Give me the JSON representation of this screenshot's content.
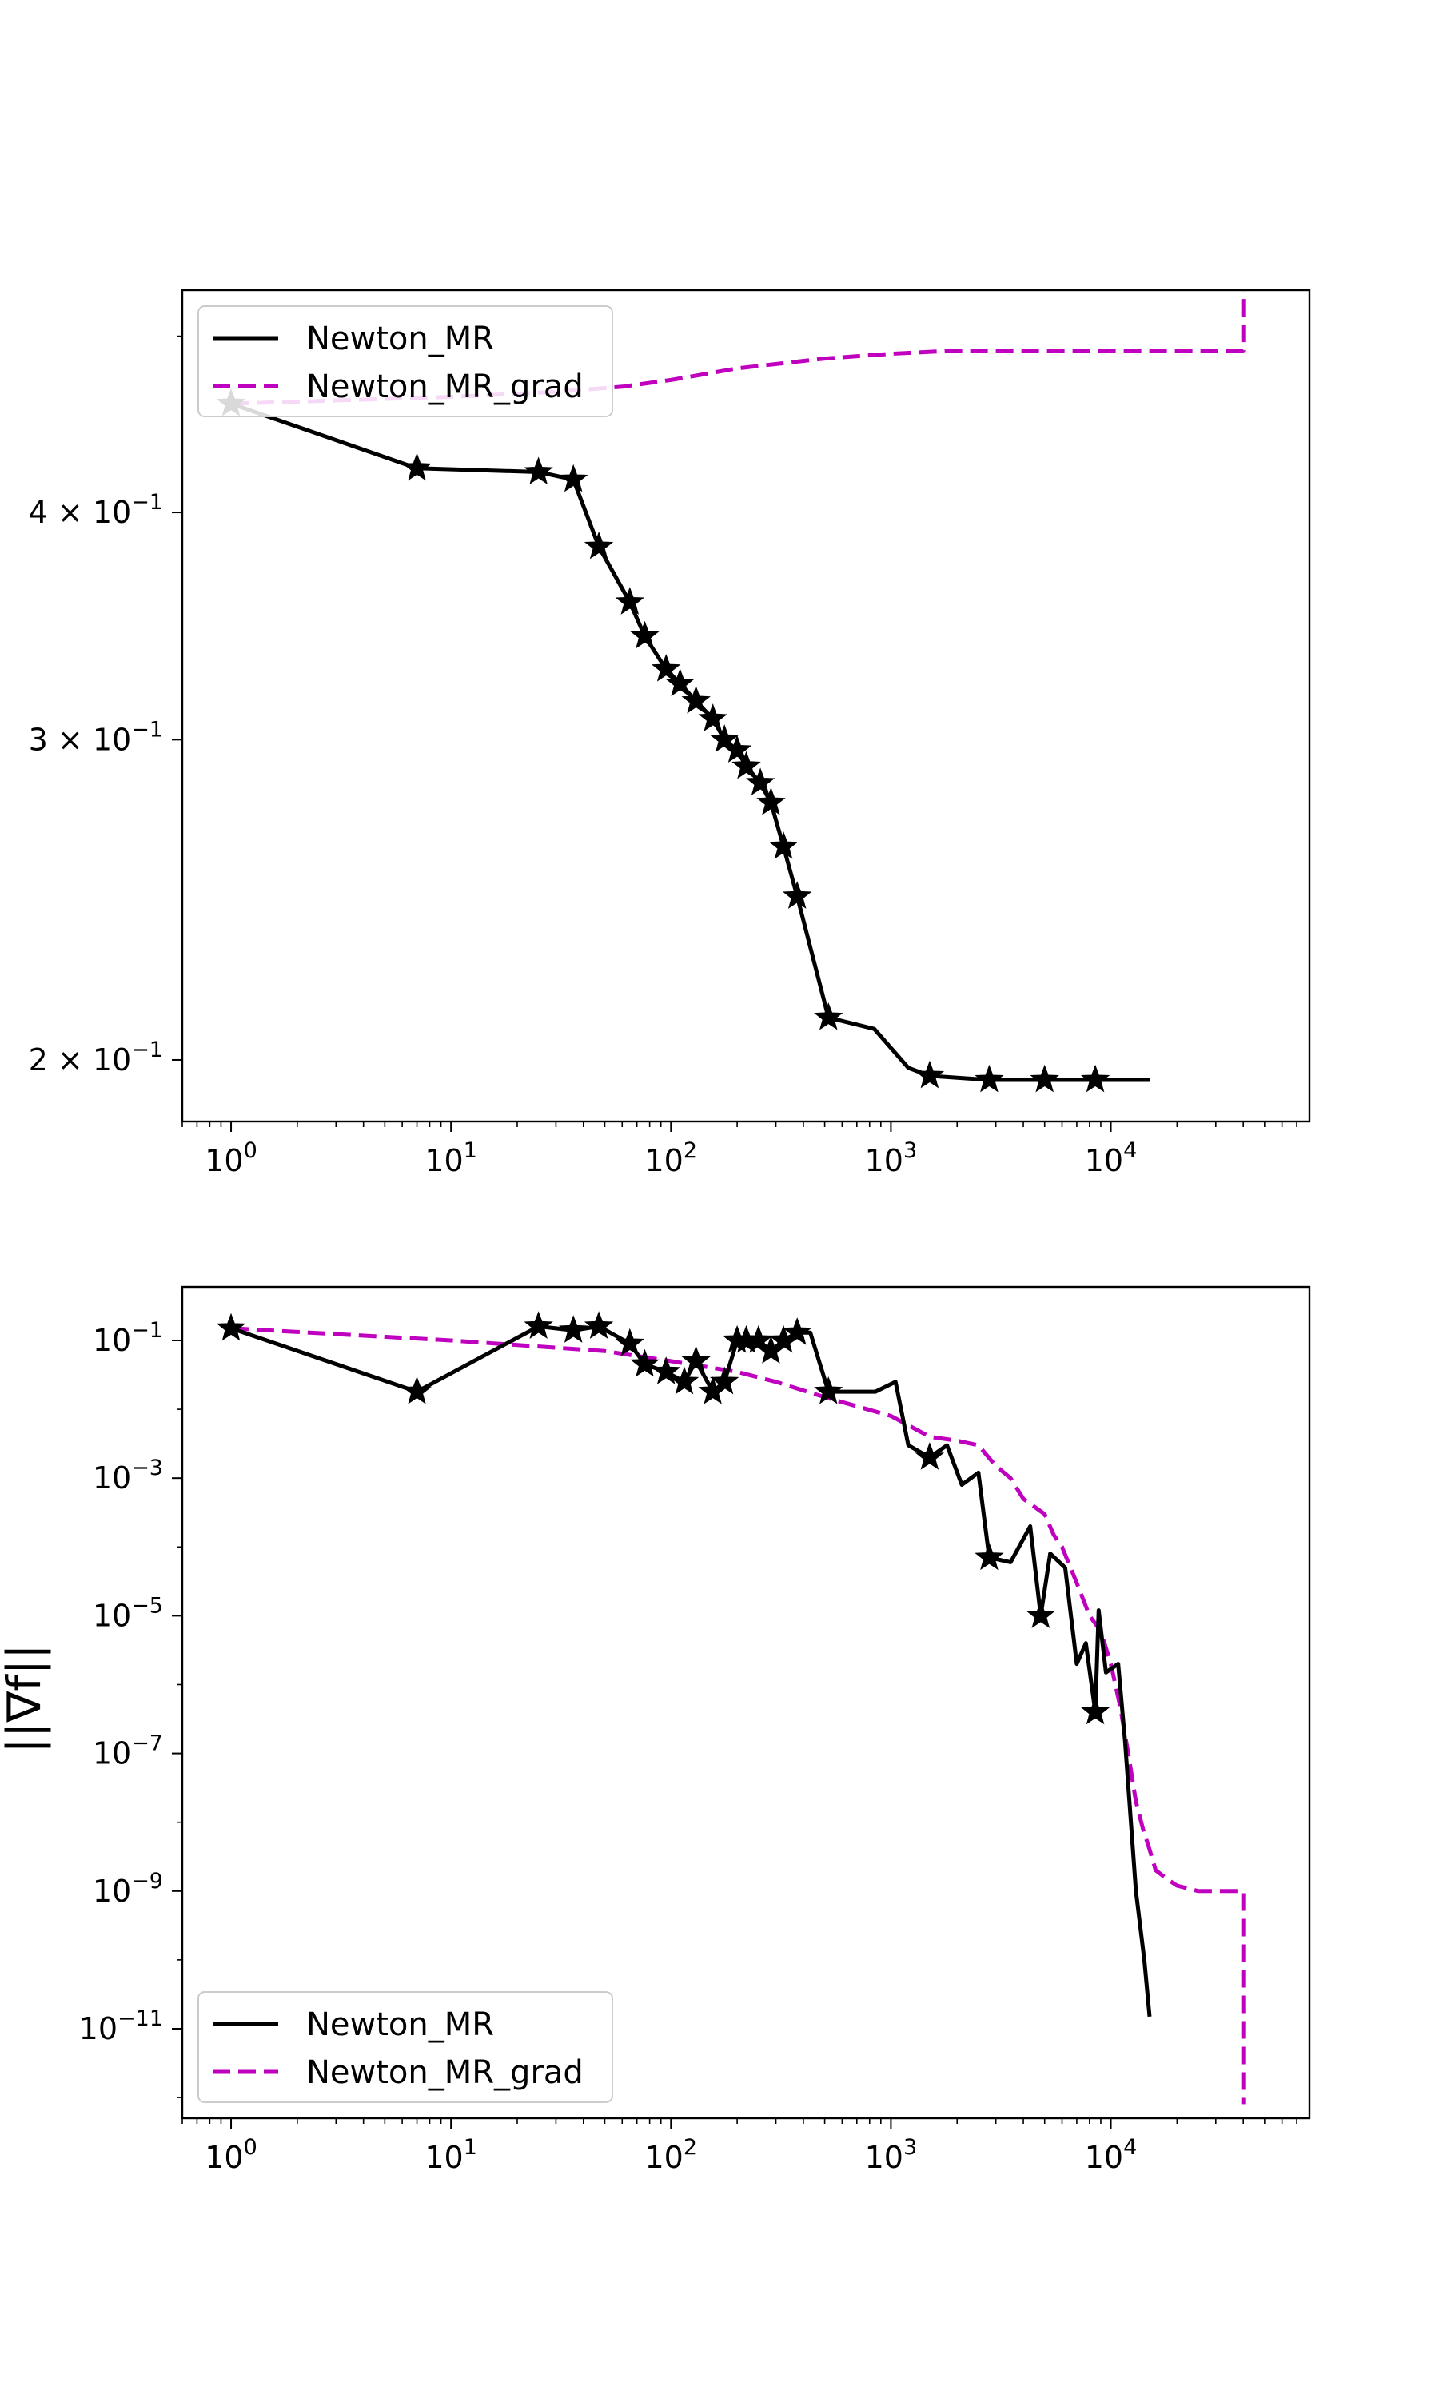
{
  "chart_data": [
    {
      "type": "line",
      "title": "",
      "xlabel": "",
      "ylabel": "",
      "xscale": "log",
      "yscale": "log",
      "xlim": [
        0.6,
        80000
      ],
      "ylim": [
        0.185,
        0.53
      ],
      "xticks": [
        {
          "value": 1,
          "base": "10",
          "exp": "0"
        },
        {
          "value": 10,
          "base": "10",
          "exp": "1"
        },
        {
          "value": 100,
          "base": "10",
          "exp": "2"
        },
        {
          "value": 1000,
          "base": "10",
          "exp": "3"
        },
        {
          "value": 10000,
          "base": "10",
          "exp": "4"
        }
      ],
      "yticks": [
        {
          "value": 0.2,
          "mant": "2",
          "base": "× 10",
          "exp": "−1"
        },
        {
          "value": 0.3,
          "mant": "3",
          "base": "× 10",
          "exp": "−1"
        },
        {
          "value": 0.4,
          "mant": "4",
          "base": "× 10",
          "exp": "−1"
        }
      ],
      "minor_yticks": [
        0.5
      ],
      "legend": {
        "placement": "upper left",
        "entries": [
          "Newton_MR",
          "Newton_MR_grad"
        ]
      },
      "series": [
        {
          "name": "Newton_MR",
          "color": "#000000",
          "style": "solid",
          "marker": "star",
          "x": [
            1,
            7,
            25,
            36,
            47,
            65,
            76,
            95,
            110,
            130,
            155,
            175,
            200,
            220,
            255,
            285,
            325,
            375,
            520,
            840,
            1200,
            1500,
            2800,
            5000,
            8500,
            15000
          ],
          "y": [
            0.459,
            0.423,
            0.421,
            0.417,
            0.383,
            0.357,
            0.342,
            0.328,
            0.322,
            0.315,
            0.308,
            0.3,
            0.296,
            0.29,
            0.284,
            0.277,
            0.262,
            0.246,
            0.211,
            0.208,
            0.198,
            0.196,
            0.195,
            0.195,
            0.195,
            0.195
          ],
          "marker_x": [
            1,
            7,
            25,
            36,
            47,
            65,
            76,
            95,
            110,
            130,
            155,
            175,
            200,
            220,
            255,
            285,
            325,
            375,
            520,
            1500,
            2800,
            5000,
            8500
          ]
        },
        {
          "name": "Newton_MR_grad",
          "color": "#bf00bf",
          "style": "dashed",
          "x": [
            1,
            10,
            30,
            60,
            100,
            200,
            500,
            1000,
            2000,
            5000,
            10000,
            20000,
            40000,
            40000
          ],
          "y": [
            0.459,
            0.463,
            0.466,
            0.469,
            0.473,
            0.48,
            0.486,
            0.489,
            0.491,
            0.491,
            0.491,
            0.491,
            0.491,
            0.53
          ]
        }
      ]
    },
    {
      "type": "line",
      "title": "",
      "xlabel": "",
      "ylabel": "||∇f||",
      "xscale": "log",
      "yscale": "log",
      "xlim": [
        0.6,
        80000
      ],
      "ylim": [
        5e-13,
        0.6
      ],
      "xticks": [
        {
          "value": 1,
          "base": "10",
          "exp": "0"
        },
        {
          "value": 10,
          "base": "10",
          "exp": "1"
        },
        {
          "value": 100,
          "base": "10",
          "exp": "2"
        },
        {
          "value": 1000,
          "base": "10",
          "exp": "3"
        },
        {
          "value": 10000,
          "base": "10",
          "exp": "4"
        }
      ],
      "yticks": [
        {
          "value": 1e-11,
          "base": "10",
          "exp": "−11"
        },
        {
          "value": 1e-09,
          "base": "10",
          "exp": "−9"
        },
        {
          "value": 1e-07,
          "base": "10",
          "exp": "−7"
        },
        {
          "value": 1e-05,
          "base": "10",
          "exp": "−5"
        },
        {
          "value": 0.001,
          "base": "10",
          "exp": "−3"
        },
        {
          "value": 0.1,
          "base": "10",
          "exp": "−1"
        }
      ],
      "legend": {
        "placement": "lower left",
        "entries": [
          "Newton_MR",
          "Newton_MR_grad"
        ]
      },
      "series": [
        {
          "name": "Newton_MR",
          "color": "#000000",
          "style": "solid",
          "marker": "star",
          "x": [
            1,
            7,
            25,
            36,
            47,
            65,
            76,
            95,
            115,
            130,
            155,
            175,
            200,
            220,
            250,
            285,
            325,
            375,
            430,
            520,
            850,
            1050,
            1200,
            1500,
            1800,
            2100,
            2500,
            2800,
            3500,
            4300,
            4800,
            5300,
            6200,
            7000,
            7700,
            8500,
            8800,
            9500,
            10800,
            11600,
            13000,
            14200,
            15000
          ],
          "y": [
            0.15,
            0.018,
            0.16,
            0.14,
            0.16,
            0.09,
            0.045,
            0.035,
            0.025,
            0.05,
            0.018,
            0.025,
            0.1,
            0.1,
            0.1,
            0.07,
            0.1,
            0.13,
            0.13,
            0.018,
            0.018,
            0.025,
            0.003,
            0.002,
            0.003,
            0.0008,
            0.0012,
            7e-05,
            6e-05,
            0.0002,
            1e-05,
            8e-05,
            5e-05,
            2e-06,
            4e-06,
            4e-07,
            1.2e-05,
            1.5e-06,
            2e-06,
            1.5e-07,
            1e-09,
            1e-10,
            1.5e-11
          ],
          "marker_x": [
            1,
            7,
            25,
            36,
            47,
            65,
            76,
            95,
            115,
            130,
            155,
            175,
            200,
            220,
            250,
            285,
            325,
            375,
            520,
            1500,
            2800,
            4800,
            8500
          ],
          "marker_y": [
            0.15,
            0.018,
            0.16,
            0.14,
            0.16,
            0.09,
            0.045,
            0.035,
            0.025,
            0.05,
            0.018,
            0.025,
            0.1,
            0.1,
            0.1,
            0.07,
            0.1,
            0.13,
            0.018,
            0.002,
            7e-05,
            1e-05,
            4e-07
          ]
        },
        {
          "name": "Newton_MR_grad",
          "color": "#bf00bf",
          "style": "dashed",
          "x": [
            1,
            10,
            50,
            100,
            200,
            300,
            500,
            1000,
            1500,
            2000,
            2500,
            3000,
            3500,
            4000,
            5000,
            5500,
            6000,
            7000,
            8000,
            9000,
            10000,
            11000,
            12000,
            13000,
            14000,
            15000,
            16000,
            18000,
            20000,
            25000,
            30000,
            40000,
            40000
          ],
          "y": [
            0.15,
            0.1,
            0.07,
            0.05,
            0.035,
            0.025,
            0.015,
            0.008,
            0.004,
            0.0035,
            0.003,
            0.0015,
            0.001,
            0.0005,
            0.0003,
            0.00015,
            0.0001,
            3e-05,
            1e-05,
            6e-06,
            2e-06,
            5e-07,
            1e-07,
            2e-08,
            8e-09,
            4e-09,
            2e-09,
            1.5e-09,
            1.2e-09,
            1e-09,
            1e-09,
            1e-09,
            8e-13
          ]
        }
      ]
    }
  ]
}
